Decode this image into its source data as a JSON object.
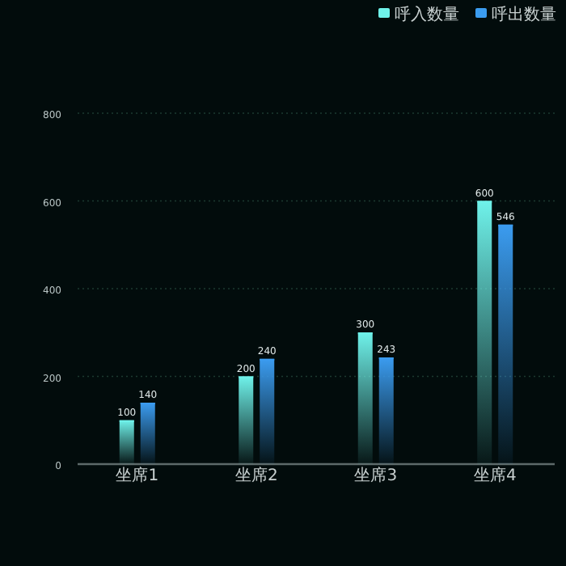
{
  "chart_data": {
    "type": "bar",
    "categories": [
      "坐席1",
      "坐席2",
      "坐席3",
      "坐席4"
    ],
    "series": [
      {
        "name": "呼入数量",
        "color": "#6ff2ea",
        "values": [
          100,
          200,
          300,
          600
        ]
      },
      {
        "name": "呼出数量",
        "color": "#3b9cf0",
        "values": [
          140,
          240,
          243,
          546
        ]
      }
    ],
    "ylim": [
      0,
      800
    ],
    "yticks": [
      0,
      200,
      400,
      600,
      800
    ],
    "grid": "y",
    "legend": "top right",
    "data_labels": true
  }
}
